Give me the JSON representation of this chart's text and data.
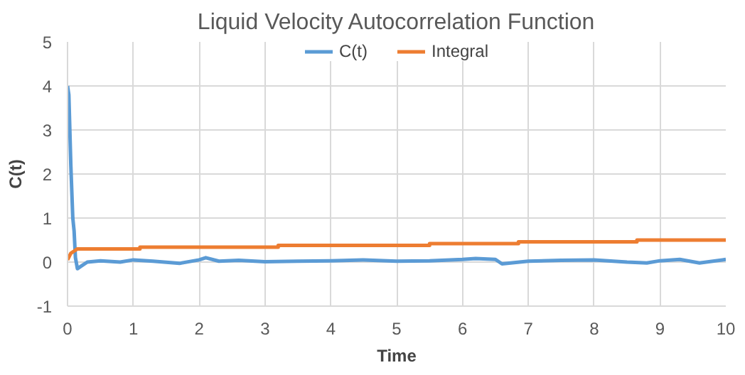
{
  "chart_data": {
    "type": "line",
    "title": "Liquid Velocity Autocorrelation Function",
    "xlabel": "Time",
    "ylabel": "C(t)",
    "xlim": [
      0,
      10
    ],
    "ylim": [
      -1,
      5
    ],
    "xticks": [
      0,
      1,
      2,
      3,
      4,
      5,
      6,
      7,
      8,
      9,
      10
    ],
    "yticks": [
      -1,
      0,
      1,
      2,
      3,
      4,
      5
    ],
    "grid": true,
    "legend": "top",
    "marker": "none",
    "line_style": "solid",
    "series": [
      {
        "name": "C(t)",
        "color": "#5b9bd5",
        "x": [
          0,
          0.02,
          0.05,
          0.08,
          0.1,
          0.12,
          0.15,
          0.2,
          0.3,
          0.5,
          0.8,
          1.0,
          1.3,
          1.7,
          2.0,
          2.1,
          2.3,
          2.6,
          3.0,
          3.5,
          4.0,
          4.5,
          5.0,
          5.5,
          6.0,
          6.2,
          6.5,
          6.6,
          7.0,
          7.5,
          8.0,
          8.5,
          8.8,
          9.0,
          9.3,
          9.6,
          10.0
        ],
        "values": [
          4.0,
          3.8,
          2.2,
          1.0,
          0.7,
          0.1,
          -0.15,
          -0.1,
          0.0,
          0.03,
          0.0,
          0.05,
          0.02,
          -0.03,
          0.05,
          0.1,
          0.02,
          0.04,
          0.01,
          0.02,
          0.03,
          0.05,
          0.02,
          0.03,
          0.06,
          0.08,
          0.06,
          -0.04,
          0.02,
          0.04,
          0.05,
          0.0,
          -0.02,
          0.03,
          0.06,
          -0.02,
          0.06
        ]
      },
      {
        "name": "Integral",
        "color": "#ed7d31",
        "x": [
          0,
          0.05,
          0.1,
          0.15,
          1.1,
          1.1,
          3.2,
          3.2,
          5.5,
          5.5,
          6.85,
          6.85,
          8.65,
          8.65,
          10.0
        ],
        "values": [
          0.05,
          0.2,
          0.25,
          0.3,
          0.3,
          0.34,
          0.34,
          0.38,
          0.38,
          0.42,
          0.42,
          0.46,
          0.46,
          0.5,
          0.5
        ]
      }
    ]
  }
}
